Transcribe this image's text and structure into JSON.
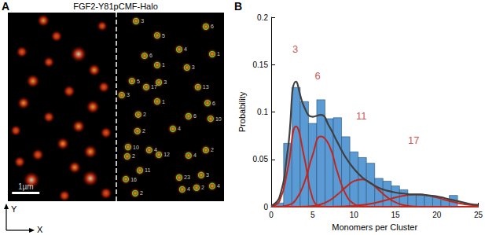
{
  "chart_data": [
    {
      "type": "scatter",
      "panel": "A",
      "title": "FGF2-Y81pCMF-Halo",
      "xlim": [
        0,
        7.86
      ],
      "ylim": [
        0,
        6.86
      ],
      "tick_labels": false,
      "grid": false,
      "color": "#33ff33",
      "spots": {
        "x": [
          1.29,
          2.57,
          0.51,
          3.43,
          1.77,
          0.91,
          3.14,
          2.23,
          0.57,
          3.09,
          1.49,
          2.57,
          3.57,
          0.29,
          2.0,
          1.09,
          3.0,
          0.86,
          3.0,
          2.06,
          3.57,
          1.49,
          3.49,
          2.43,
          0.43
        ],
        "y": [
          0.29,
          1.51,
          1.43,
          0.49,
          0.86,
          2.49,
          2.09,
          2.86,
          3.29,
          3.43,
          3.8,
          4.14,
          4.37,
          4.29,
          4.77,
          5.17,
          5.06,
          6.09,
          6.03,
          6.66,
          6.57,
          1.8,
          2.71,
          5.63,
          5.43
        ],
        "intensity": [
          0.6,
          0.95,
          0.5,
          0.4,
          0.5,
          0.7,
          0.6,
          0.55,
          0.6,
          0.7,
          0.5,
          0.65,
          0.5,
          0.45,
          0.6,
          0.55,
          0.7,
          1.0,
          0.95,
          0.5,
          0.55,
          0.45,
          0.5,
          0.6,
          0.5
        ]
      },
      "clusters": {
        "x": [
          4.66,
          7.2,
          5.43,
          6.23,
          4.97,
          7.43,
          6.51,
          5.43,
          4.51,
          5.49,
          5.03,
          6.91,
          4.14,
          5.43,
          7.26,
          4.74,
          6.57,
          7.37,
          6.0,
          4.71,
          4.37,
          5.14,
          4.34,
          5.49,
          7.2,
          6.57,
          4.8,
          4.29,
          6.23,
          7.03,
          6.34,
          6.86,
          7.43,
          4.63
        ],
        "y": [
          0.31,
          0.51,
          0.83,
          1.34,
          1.57,
          1.51,
          2.0,
          1.91,
          2.49,
          2.54,
          2.71,
          2.71,
          3.0,
          3.23,
          3.29,
          3.71,
          3.77,
          3.86,
          4.23,
          4.31,
          4.89,
          5.0,
          5.23,
          5.17,
          5.0,
          5.2,
          5.74,
          6.06,
          6.0,
          5.91,
          6.43,
          6.37,
          6.31,
          6.57
        ],
        "counts": [
          3,
          6,
          5,
          4,
          6,
          1,
          3,
          1,
          5,
          3,
          17,
          13,
          3,
          1,
          6,
          2,
          6,
          10,
          4,
          2,
          10,
          4,
          2,
          12,
          2,
          4,
          11,
          16,
          23,
          3,
          4,
          2,
          4,
          2
        ]
      },
      "divider_x": 3.94,
      "scale_bar": {
        "length": 1,
        "label": "1µm"
      },
      "axis_names": {
        "x": "X",
        "y": "Y"
      }
    },
    {
      "type": "histogram",
      "panel": "B",
      "x_label": "Monomers per Cluster",
      "y_label": "Probability",
      "xlim": [
        0,
        25
      ],
      "ylim": [
        0,
        0.2
      ],
      "xticks": [
        0,
        5,
        10,
        15,
        20,
        25
      ],
      "yticks": [
        0,
        0.05,
        0.1,
        0.15,
        0.2
      ],
      "grid": false,
      "color": "#5b9bd5",
      "bins": [
        0.5,
        1.5,
        2.5,
        3.5,
        4.5,
        5.5,
        6.5,
        7.5,
        8.5,
        9.5,
        10.5,
        11.5,
        12.5,
        13.5,
        14.5,
        15.5,
        16.5,
        17.5,
        18.5,
        19.5,
        20.5,
        21.5,
        22.5
      ],
      "counts": [
        0.004,
        0.067,
        0.126,
        0.111,
        0.088,
        0.113,
        0.093,
        0.094,
        0.074,
        0.058,
        0.052,
        0.046,
        0.03,
        0.027,
        0.022,
        0.018,
        0.013,
        0.012,
        0.012,
        0.01,
        0.007,
        0.012
      ],
      "x": [
        0,
        1,
        2,
        3,
        4,
        5,
        6,
        7,
        8,
        9,
        10,
        11,
        12,
        13,
        14,
        15,
        16,
        17,
        18,
        19,
        20,
        21,
        22,
        23,
        24,
        25
      ],
      "series": [
        {
          "type": "line",
          "color": "#c0281f",
          "values": [
            0.0002,
            0.006,
            0.04,
            0.085,
            0.052,
            0.009,
            0.0005,
            0,
            0,
            0,
            0,
            0,
            0,
            0,
            0,
            0,
            0,
            0,
            0,
            0,
            0,
            0,
            0,
            0,
            0,
            0
          ]
        },
        {
          "type": "line",
          "color": "#c0281f",
          "values": [
            0,
            0.0002,
            0.0015,
            0.0077,
            0.0255,
            0.0545,
            0.0743,
            0.065,
            0.0365,
            0.0131,
            0.003,
            0.0004,
            0,
            0,
            0,
            0,
            0,
            0,
            0,
            0,
            0,
            0,
            0,
            0,
            0,
            0
          ]
        },
        {
          "type": "line",
          "color": "#c0281f",
          "values": [
            0,
            0,
            0,
            0,
            0.0002,
            0.0009,
            0.0027,
            0.0065,
            0.0129,
            0.0207,
            0.0271,
            0.0289,
            0.025,
            0.0176,
            0.0101,
            0.0047,
            0.0018,
            0.0005,
            0.0001,
            0,
            0,
            0,
            0,
            0,
            0,
            0
          ]
        },
        {
          "type": "line",
          "color": "#c0281f",
          "values": [
            0,
            0,
            0,
            0,
            0,
            0,
            0,
            0.0001,
            0.0002,
            0.0005,
            0.001,
            0.0019,
            0.0032,
            0.0051,
            0.0074,
            0.0098,
            0.0117,
            0.0129,
            0.0129,
            0.0117,
            0.0098,
            0.0074,
            0.0051,
            0.0032,
            0.0019,
            0.001
          ]
        },
        {
          "type": "line",
          "color": "#404040",
          "values": [
            0.001,
            0.01,
            0.06,
            0.132,
            0.105,
            0.095,
            0.097,
            0.085,
            0.068,
            0.052,
            0.04,
            0.031,
            0.025,
            0.02,
            0.017,
            0.015,
            0.014,
            0.013,
            0.013,
            0.012,
            0.011,
            0.009,
            0.007,
            0.005,
            0.003,
            0.002
          ]
        }
      ],
      "annotations": [
        {
          "text": "3",
          "x": 2.9,
          "y": 0.166
        },
        {
          "text": "6",
          "x": 5.6,
          "y": 0.138
        },
        {
          "text": "11",
          "x": 10.9,
          "y": 0.096
        },
        {
          "text": "17",
          "x": 17.2,
          "y": 0.07
        }
      ]
    }
  ]
}
